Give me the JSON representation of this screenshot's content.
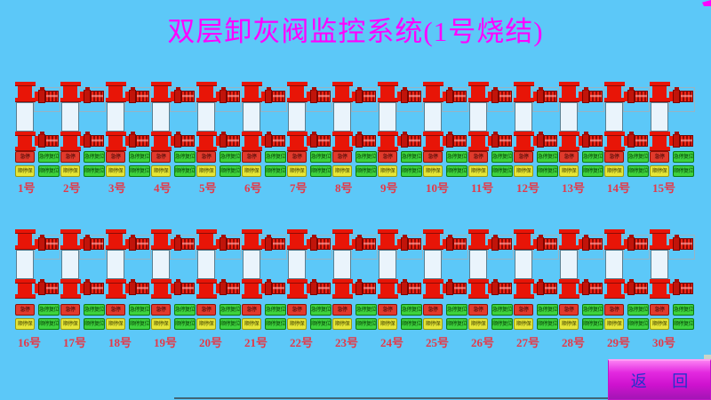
{
  "title": {
    "text": "双层卸灰阀监控系统(1号烧结)"
  },
  "colors": {
    "background": "#5cc8f8",
    "title": "#ff00ff",
    "valve_red": "#e81507",
    "valve_dark_red": "#9c0a05",
    "chamber_fill": "#eaf4fc",
    "unit_label": "#e53948",
    "button_red": "#e23a2c",
    "button_green": "#3ed23e",
    "button_yellow": "#e6e637",
    "back_button": "#d414d6",
    "back_button_text": "#2233cc"
  },
  "unit_controls": {
    "estop": "急停",
    "estop_reset": "急停复位",
    "seq_stop": "顺停保",
    "seq_stop_reset": "顺停复位"
  },
  "rows": [
    {
      "name": "row-1",
      "units": [
        "1号",
        "2号",
        "3号",
        "4号",
        "5号",
        "6号",
        "7号",
        "8号",
        "9号",
        "10号",
        "11号",
        "12号",
        "13号",
        "14号",
        "15号"
      ]
    },
    {
      "name": "row-2",
      "units": [
        "16号",
        "17号",
        "18号",
        "19号",
        "20号",
        "21号",
        "22号",
        "23号",
        "24号",
        "25号",
        "26号",
        "27号",
        "28号",
        "29号",
        "30号"
      ]
    }
  ],
  "back_button": {
    "label": "返 回"
  }
}
